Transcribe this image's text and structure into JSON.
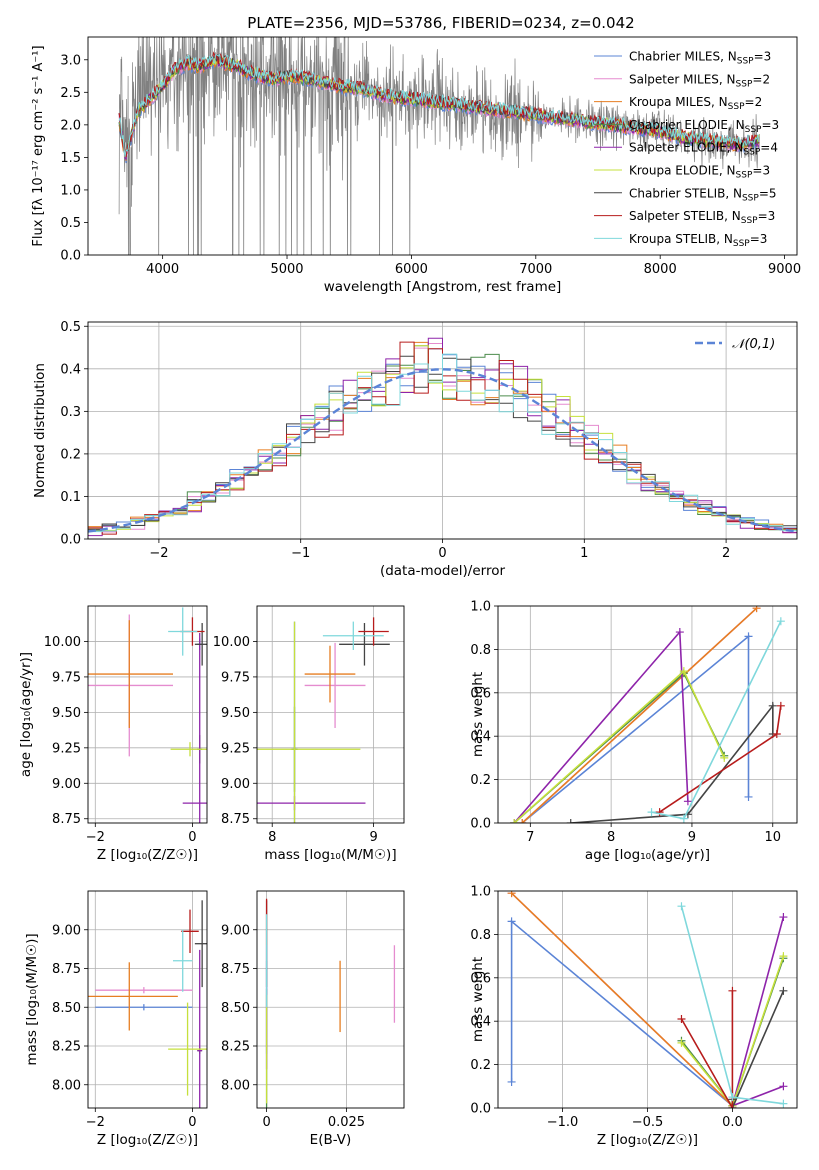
{
  "title": "PLATE=2356, MJD=53786, FIBERID=0234, z=0.042",
  "models": [
    {
      "name": "Chabrier MILES",
      "nssp": "3",
      "color": "#5b84d6"
    },
    {
      "name": "Salpeter MILES",
      "nssp": "2",
      "color": "#e58ccf"
    },
    {
      "name": "Kroupa MILES",
      "nssp": "2",
      "color": "#e67e22"
    },
    {
      "name": "Chabrier ELODIE",
      "nssp": "3",
      "color": "#4c8c4c"
    },
    {
      "name": "Salpeter ELODIE",
      "nssp": "4",
      "color": "#8e24aa"
    },
    {
      "name": "Kroupa ELODIE",
      "nssp": "3",
      "color": "#c6e03c"
    },
    {
      "name": "Chabrier STELIB",
      "nssp": "5",
      "color": "#444444"
    },
    {
      "name": "Salpeter STELIB",
      "nssp": "3",
      "color": "#b71c1c"
    },
    {
      "name": "Kroupa STELIB",
      "nssp": "3",
      "color": "#7fd8dc"
    }
  ],
  "nssp_prefix": "N",
  "nssp_sub": "SSP",
  "chart_data": [
    {
      "id": "spectrum",
      "type": "line",
      "xlabel": "wavelength [Angstrom, rest frame]",
      "ylabel": "Flux [f_λ 10^-17 erg cm^-2 s^-1 A^-1]",
      "xlim": [
        3400,
        9100
      ],
      "ylim": [
        0,
        3.35
      ],
      "xticks": [
        4000,
        5000,
        6000,
        7000,
        8000,
        9000
      ],
      "yticks": [
        0.0,
        0.5,
        1.0,
        1.5,
        2.0,
        2.5,
        3.0
      ],
      "data_color": "#808080",
      "data_range": [
        3650,
        8800
      ],
      "model_envelope": {
        "x": [
          3650,
          3700,
          3800,
          3900,
          4000,
          4100,
          4200,
          4300,
          4400,
          4500,
          4600,
          4700,
          4800,
          4900,
          5000,
          5200,
          5400,
          5600,
          5800,
          6000,
          6200,
          6400,
          6600,
          6800,
          7000,
          7200,
          7400,
          7600,
          7800,
          8000,
          8200,
          8400,
          8600,
          8800
        ],
        "y": [
          2.1,
          1.5,
          2.2,
          2.4,
          2.6,
          2.85,
          2.95,
          2.9,
          3.0,
          2.95,
          2.9,
          2.8,
          2.75,
          2.7,
          2.75,
          2.7,
          2.6,
          2.55,
          2.45,
          2.4,
          2.35,
          2.3,
          2.25,
          2.2,
          2.15,
          2.1,
          2.05,
          2.0,
          1.95,
          1.9,
          1.8,
          1.75,
          1.7,
          1.75
        ]
      }
    },
    {
      "id": "residuals",
      "type": "histogram",
      "xlabel": "(data-model)/error",
      "ylabel": "Normed distribution",
      "xlim": [
        -2.5,
        2.5
      ],
      "ylim": [
        0,
        0.51
      ],
      "xticks": [
        -2,
        -1,
        0,
        1,
        2
      ],
      "yticks": [
        0.0,
        0.1,
        0.2,
        0.3,
        0.4,
        0.5
      ],
      "bin_width": 0.1,
      "reference": {
        "label": "𝒩(0,1)",
        "mean": 0,
        "sigma": 1,
        "color": "#5b84d6"
      }
    },
    {
      "id": "age_vs_Z",
      "type": "errorbar",
      "xlabel": "Z [log10(Z/Z☉)]",
      "ylabel": "age [log10(age/yr)]",
      "xlim": [
        -2.15,
        0.3
      ],
      "ylim": [
        8.72,
        10.25
      ],
      "xticks": [
        -2,
        0
      ],
      "yticks": [
        8.75,
        9.0,
        9.25,
        9.5,
        9.75,
        10.0
      ],
      "points": [
        {
          "model": 0,
          "x": 0.15,
          "xerr": 0.05,
          "y": 9.98,
          "yerr": 0.04
        },
        {
          "model": 1,
          "x": -1.3,
          "xerr": 0.9,
          "y": 9.69,
          "yerr": 0.5
        },
        {
          "model": 2,
          "x": -1.3,
          "xerr": 0.9,
          "y": 9.77,
          "yerr": 0.38
        },
        {
          "model": 3,
          "x": 0.15,
          "xerr": 0.05,
          "y": 9.24,
          "yerr": 0.1
        },
        {
          "model": 4,
          "x": 0.15,
          "xerr": 0.35,
          "y": 8.86,
          "yerr": 1.2
        },
        {
          "model": 5,
          "x": -0.05,
          "xerr": 0.4,
          "y": 9.24,
          "yerr": 0.05
        },
        {
          "model": 6,
          "x": 0.2,
          "xerr": 0.15,
          "y": 9.98,
          "yerr": 0.15
        },
        {
          "model": 7,
          "x": 0.0,
          "xerr": 0.25,
          "y": 10.07,
          "yerr": 0.1
        },
        {
          "model": 8,
          "x": -0.2,
          "xerr": 0.3,
          "y": 10.07,
          "yerr": 0.17
        }
      ]
    },
    {
      "id": "age_vs_mass",
      "type": "errorbar",
      "xlabel": "mass [log10(M/M☉)]",
      "ylabel": "",
      "xlim": [
        7.85,
        9.3
      ],
      "ylim": [
        8.72,
        10.25
      ],
      "xticks": [
        8,
        9
      ],
      "yticks": [
        8.75,
        9.0,
        9.25,
        9.5,
        9.75,
        10.0
      ],
      "points": [
        {
          "model": 0,
          "x": 8.22,
          "xerr": 0.03,
          "y": 9.24,
          "yerr": 0.9
        },
        {
          "model": 1,
          "x": 8.62,
          "xerr": 0.3,
          "y": 9.69,
          "yerr": 0.3
        },
        {
          "model": 2,
          "x": 8.57,
          "xerr": 0.25,
          "y": 9.77,
          "yerr": 0.2
        },
        {
          "model": 3,
          "x": 8.22,
          "xerr": 0.03,
          "y": 9.24,
          "yerr": 0.3
        },
        {
          "model": 4,
          "x": 8.22,
          "xerr": 0.7,
          "y": 8.86,
          "yerr": 0.05
        },
        {
          "model": 5,
          "x": 8.22,
          "xerr": 0.65,
          "y": 9.24,
          "yerr": 0.9
        },
        {
          "model": 6,
          "x": 8.91,
          "xerr": 0.25,
          "y": 9.98,
          "yerr": 0.15
        },
        {
          "model": 7,
          "x": 9.0,
          "xerr": 0.15,
          "y": 10.07,
          "yerr": 0.1
        },
        {
          "model": 8,
          "x": 8.8,
          "xerr": 0.3,
          "y": 10.04,
          "yerr": 0.1
        }
      ]
    },
    {
      "id": "weight_vs_age",
      "type": "line",
      "xlabel": "age [log10(age/yr)]",
      "ylabel": "mass weight",
      "xlim": [
        6.6,
        10.3
      ],
      "ylim": [
        0,
        1
      ],
      "xticks": [
        7,
        8,
        9,
        10
      ],
      "yticks": [
        0.0,
        0.2,
        0.4,
        0.6,
        0.8,
        1.0
      ],
      "series": [
        {
          "model": 0,
          "x": [
            6.9,
            9.7,
            9.7
          ],
          "y": [
            0.0,
            0.86,
            0.12
          ]
        },
        {
          "model": 1,
          "x": [
            6.9,
            9.8
          ],
          "y": [
            0.0,
            0.99
          ]
        },
        {
          "model": 2,
          "x": [
            6.9,
            9.8
          ],
          "y": [
            0.0,
            0.99
          ]
        },
        {
          "model": 3,
          "x": [
            6.8,
            8.9,
            9.4
          ],
          "y": [
            0.0,
            0.69,
            0.31
          ]
        },
        {
          "model": 4,
          "x": [
            6.8,
            8.85,
            8.95
          ],
          "y": [
            0.0,
            0.88,
            0.1
          ]
        },
        {
          "model": 5,
          "x": [
            6.8,
            8.9,
            9.4
          ],
          "y": [
            0.0,
            0.7,
            0.3
          ]
        },
        {
          "model": 6,
          "x": [
            7.5,
            8.95,
            10.0,
            10.0
          ],
          "y": [
            0.0,
            0.04,
            0.54,
            0.41
          ]
        },
        {
          "model": 7,
          "x": [
            8.6,
            10.05,
            10.1
          ],
          "y": [
            0.05,
            0.41,
            0.54
          ]
        },
        {
          "model": 8,
          "x": [
            8.5,
            8.9,
            10.1
          ],
          "y": [
            0.05,
            0.02,
            0.93
          ]
        }
      ]
    },
    {
      "id": "mass_vs_Z",
      "type": "errorbar",
      "xlabel": "Z [log10(Z/Z☉)]",
      "ylabel": "mass [log10(M/M☉)]",
      "xlim": [
        -2.15,
        0.3
      ],
      "ylim": [
        7.85,
        9.25
      ],
      "xticks": [
        -2,
        0
      ],
      "yticks": [
        8.0,
        8.25,
        8.5,
        8.75,
        9.0
      ],
      "points": [
        {
          "model": 0,
          "x": -1.0,
          "xerr": 1.0,
          "y": 8.5,
          "yerr": 0.02
        },
        {
          "model": 1,
          "x": -1.0,
          "xerr": 1.0,
          "y": 8.61,
          "yerr": 0.02
        },
        {
          "model": 2,
          "x": -1.3,
          "xerr": 1.0,
          "y": 8.57,
          "yerr": 0.22
        },
        {
          "model": 3,
          "x": 0.15,
          "xerr": 0.05,
          "y": 8.22,
          "yerr": 0.02
        },
        {
          "model": 4,
          "x": 0.15,
          "xerr": 0.05,
          "y": 8.22,
          "yerr": 0.65
        },
        {
          "model": 5,
          "x": -0.1,
          "xerr": 0.4,
          "y": 8.23,
          "yerr": 0.3
        },
        {
          "model": 6,
          "x": 0.2,
          "xerr": 0.15,
          "y": 8.91,
          "yerr": 0.28
        },
        {
          "model": 7,
          "x": -0.05,
          "xerr": 0.18,
          "y": 8.99,
          "yerr": 0.14
        },
        {
          "model": 8,
          "x": -0.2,
          "xerr": 0.2,
          "y": 8.8,
          "yerr": 0.2
        }
      ]
    },
    {
      "id": "mass_vs_EBV",
      "type": "errorbar",
      "xlabel": "E(B-V)",
      "ylabel": "",
      "xlim": [
        -0.003,
        0.043
      ],
      "ylim": [
        7.85,
        9.25
      ],
      "xticks": [
        0.0,
        0.025
      ],
      "yticks": [
        8.0,
        8.25,
        8.5,
        8.75,
        9.0
      ],
      "points": [
        {
          "model": 0,
          "x": 0.0,
          "xerr": 0,
          "y": 8.5,
          "yerr": 0.3
        },
        {
          "model": 1,
          "x": 0.04,
          "xerr": 0,
          "y": 8.65,
          "yerr": 0.25
        },
        {
          "model": 2,
          "x": 0.023,
          "xerr": 0,
          "y": 8.57,
          "yerr": 0.23
        },
        {
          "model": 3,
          "x": 0.0,
          "xerr": 0,
          "y": 8.22,
          "yerr": 0.4
        },
        {
          "model": 4,
          "x": 0.0,
          "xerr": 0,
          "y": 8.5,
          "yerr": 0.4
        },
        {
          "model": 5,
          "x": 0.0,
          "xerr": 0,
          "y": 8.23,
          "yerr": 0.35
        },
        {
          "model": 6,
          "x": 0.0,
          "xerr": 0,
          "y": 8.91,
          "yerr": 0.28
        },
        {
          "model": 7,
          "x": 0.0,
          "xerr": 0,
          "y": 9.05,
          "yerr": 0.15
        },
        {
          "model": 8,
          "x": 0.0,
          "xerr": 0,
          "y": 8.8,
          "yerr": 0.3
        }
      ]
    },
    {
      "id": "weight_vs_Z",
      "type": "line",
      "xlabel": "Z [log10(Z/Z☉)]",
      "ylabel": "mass weight",
      "xlim": [
        -1.38,
        0.38
      ],
      "ylim": [
        0,
        1
      ],
      "xticks": [
        -1.0,
        -0.5,
        0.0
      ],
      "yticks": [
        0.0,
        0.2,
        0.4,
        0.6,
        0.8,
        1.0
      ],
      "series": [
        {
          "model": 0,
          "x": [
            -1.3,
            -1.3,
            0.0
          ],
          "y": [
            0.12,
            0.86,
            0.01
          ]
        },
        {
          "model": 1,
          "x": [
            -1.3,
            0.0
          ],
          "y": [
            0.99,
            0.01
          ]
        },
        {
          "model": 2,
          "x": [
            -1.3,
            0.0
          ],
          "y": [
            0.99,
            0.01
          ]
        },
        {
          "model": 3,
          "x": [
            -0.3,
            0.0,
            0.3
          ],
          "y": [
            0.31,
            0.01,
            0.69
          ]
        },
        {
          "model": 4,
          "x": [
            0.3,
            0.0,
            0.3
          ],
          "y": [
            0.1,
            0.01,
            0.88
          ]
        },
        {
          "model": 5,
          "x": [
            -0.3,
            0.0,
            0.3
          ],
          "y": [
            0.3,
            0.01,
            0.7
          ]
        },
        {
          "model": 6,
          "x": [
            0.0,
            0.0,
            0.3
          ],
          "y": [
            0.04,
            0.0,
            0.54
          ]
        },
        {
          "model": 7,
          "x": [
            -0.3,
            0.0,
            0.0
          ],
          "y": [
            0.41,
            0.0,
            0.54
          ]
        },
        {
          "model": 8,
          "x": [
            -0.3,
            0.0,
            0.3
          ],
          "y": [
            0.93,
            0.05,
            0.02
          ]
        }
      ]
    }
  ]
}
